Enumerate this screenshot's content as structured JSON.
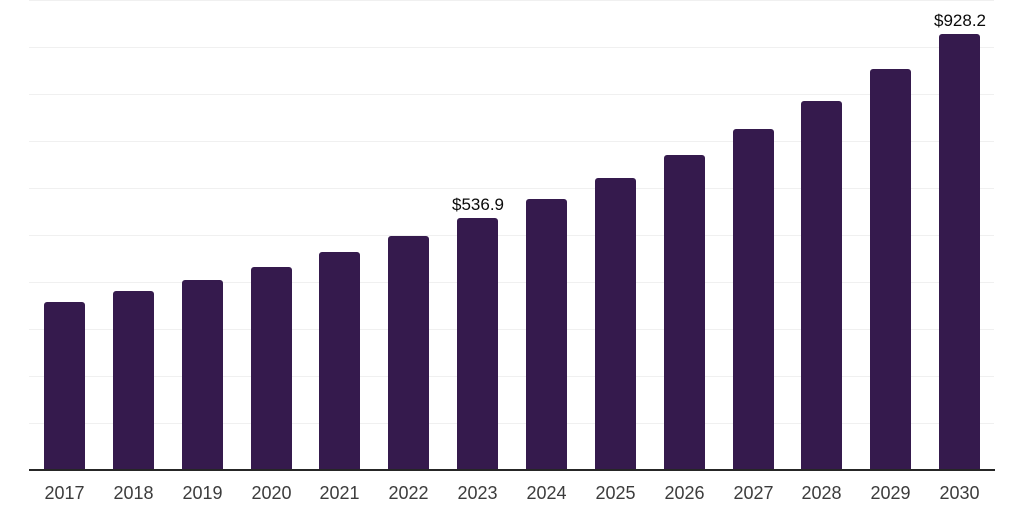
{
  "chart_data": {
    "type": "bar",
    "title": "",
    "xlabel": "",
    "ylabel": "",
    "categories": [
      "2017",
      "2018",
      "2019",
      "2020",
      "2021",
      "2022",
      "2023",
      "2024",
      "2025",
      "2026",
      "2027",
      "2028",
      "2029",
      "2030"
    ],
    "values": [
      357,
      380,
      405,
      433,
      465,
      497,
      536.9,
      576,
      621,
      670,
      726,
      786,
      854,
      928.2
    ],
    "value_labels": {
      "2023": "$536.9",
      "2030": "$928.2"
    },
    "ylim": [
      0,
      1000
    ],
    "grid_step": 100,
    "grid": true,
    "legend_position": "none",
    "colors": {
      "bar": "#351a4d",
      "axis_line": "#262626",
      "gridline": "#f0f0f0",
      "tick_label": "#3c3c3c",
      "value_label": "#0a0a0a",
      "background": "#ffffff"
    }
  }
}
